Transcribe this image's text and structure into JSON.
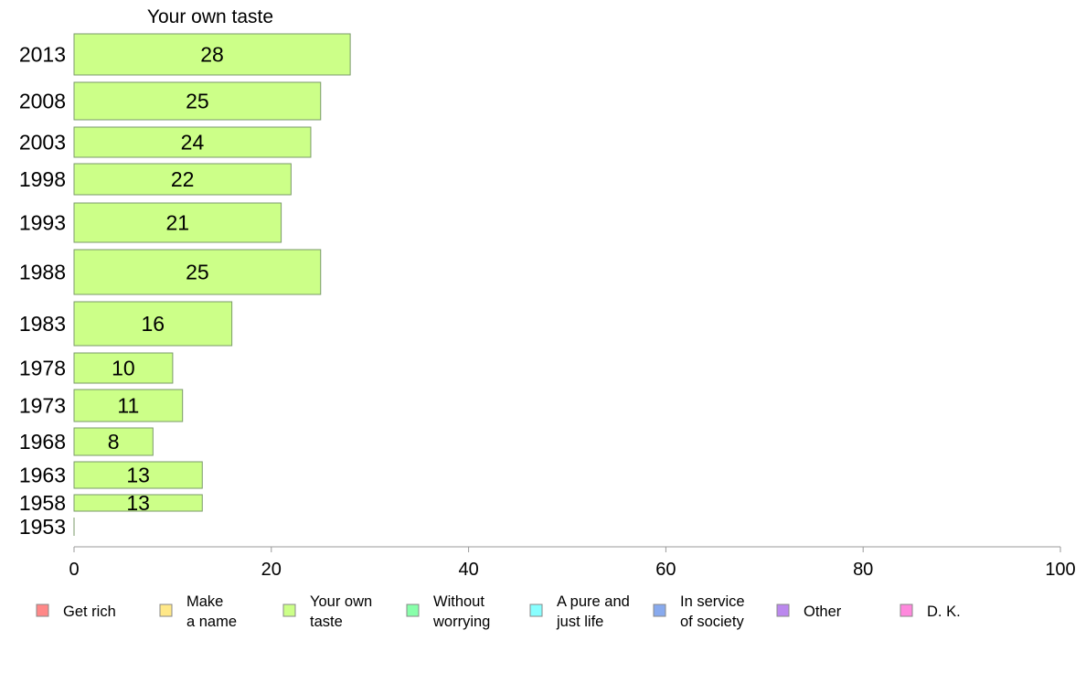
{
  "chart_data": {
    "type": "bar",
    "orientation": "horizontal",
    "title": "Your own taste",
    "categories": [
      "2013",
      "2008",
      "2003",
      "1998",
      "1993",
      "1988",
      "1983",
      "1978",
      "1973",
      "1968",
      "1963",
      "1958",
      "1953"
    ],
    "series": [
      {
        "name": "Your own taste",
        "values": [
          28,
          25,
          24,
          22,
          21,
          25,
          16,
          10,
          11,
          8,
          13,
          13,
          0
        ],
        "color": "#ccff88"
      }
    ],
    "xlim": [
      0,
      100
    ],
    "xticks": [
      0,
      20,
      40,
      60,
      80,
      100
    ],
    "grid": false,
    "legend_position": "bottom",
    "legend": [
      {
        "lines": [
          "Get rich"
        ],
        "color": "#ff8888"
      },
      {
        "lines": [
          "Make",
          "a name"
        ],
        "color": "#ffe888"
      },
      {
        "lines": [
          "Your own",
          "taste"
        ],
        "color": "#ccff88"
      },
      {
        "lines": [
          "Without",
          "worrying"
        ],
        "color": "#88ffaa"
      },
      {
        "lines": [
          "A pure and",
          "just life"
        ],
        "color": "#88ffff"
      },
      {
        "lines": [
          "In service",
          "of society"
        ],
        "color": "#88aaee"
      },
      {
        "lines": [
          "Other"
        ],
        "color": "#bb88ee"
      },
      {
        "lines": [
          "D. K."
        ],
        "color": "#ff88dd"
      }
    ]
  }
}
